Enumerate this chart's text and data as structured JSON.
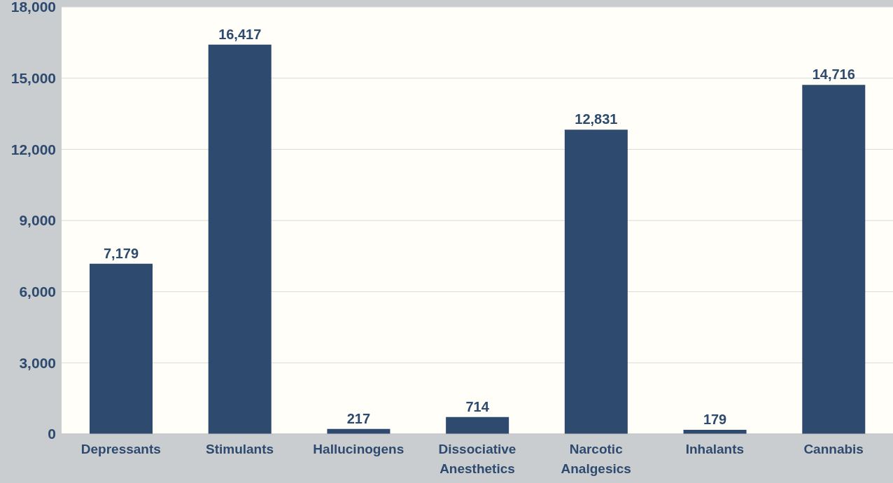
{
  "chart_data": {
    "type": "bar",
    "categories": [
      "Depressants",
      "Stimulants",
      "Hallucinogens",
      "Dissociative Anesthetics",
      "Narcotic Analgesics",
      "Inhalants",
      "Cannabis"
    ],
    "values": [
      7179,
      16417,
      217,
      714,
      12831,
      179,
      14716
    ],
    "color": "#2e4a6e",
    "value_labels": [
      "7,179",
      "16,417",
      "217",
      "714",
      "12,831",
      "179",
      "14,716"
    ],
    "ylim": [
      0,
      18000
    ],
    "yticks": [
      0,
      {
        "value": 3000,
        "label": "3,000"
      },
      {
        "value": 6000,
        "label": "6,000"
      },
      {
        "value": 9000,
        "label": "9,000"
      },
      {
        "value": 12000,
        "label": "12,000"
      },
      {
        "value": 15000,
        "label": "15,000"
      },
      {
        "value": 18000,
        "label": "18,000"
      }
    ],
    "grid": "y"
  }
}
